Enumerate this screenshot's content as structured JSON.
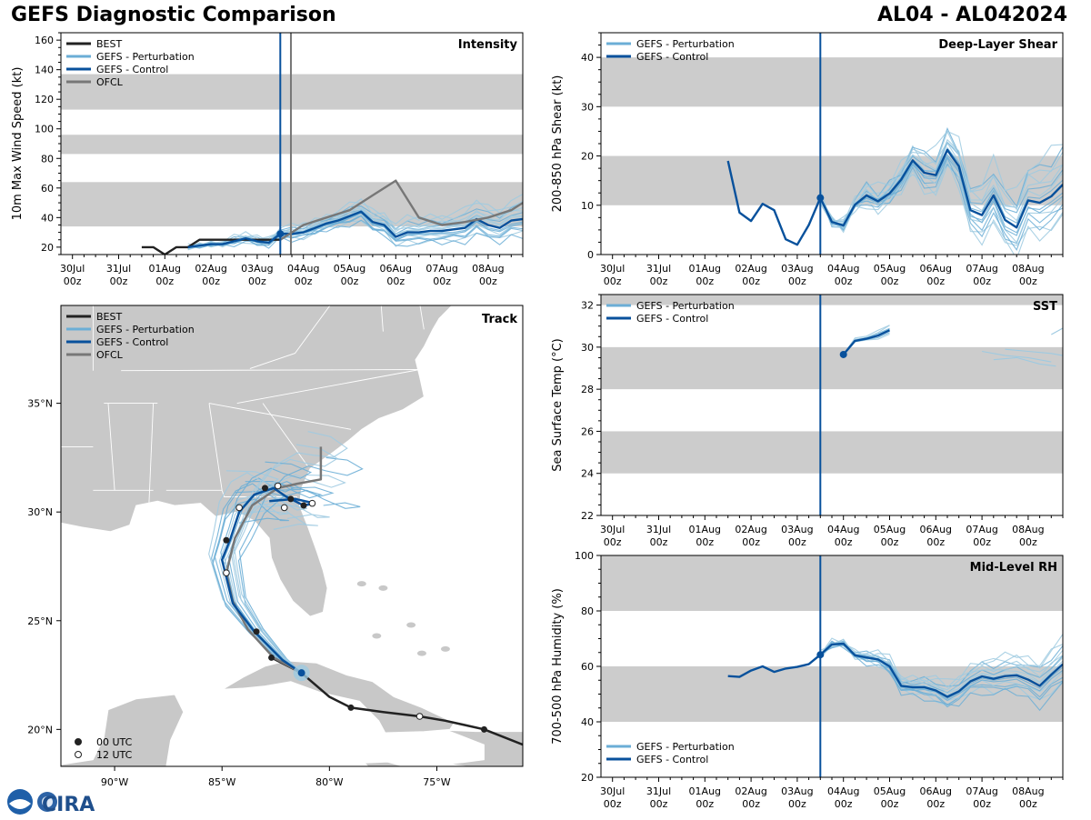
{
  "header": {
    "left_title": "GEFS Diagnostic Comparison",
    "right_title": "AL04 - AL042024"
  },
  "logo": {
    "text": "CIRA"
  },
  "colors": {
    "best": "#222222",
    "perturbation": "#6baed6",
    "perturbation_light": "#9ecae1",
    "control": "#08519c",
    "ofcl": "#777777",
    "band": "#cccccc",
    "land": "#c8c8c8"
  },
  "time_axis": {
    "tick_labels": [
      "30Jul\n00z",
      "31Jul\n00z",
      "01Aug\n00z",
      "02Aug\n00z",
      "03Aug\n00z",
      "04Aug\n00z",
      "05Aug\n00z",
      "06Aug\n00z",
      "07Aug\n00z",
      "08Aug\n00z"
    ],
    "tick_days": [
      0,
      1,
      2,
      3,
      4,
      5,
      6,
      7,
      8,
      9
    ],
    "xlim_days": [
      -0.25,
      9.75
    ],
    "init_day": 4.5,
    "ofcl_line_day": 4.73
  },
  "chart_data": [
    {
      "id": "intensity",
      "type": "line",
      "title": "Intensity",
      "ylabel": "10m Max Wind Speed (kt)",
      "ylim": [
        15,
        165
      ],
      "yticks": [
        20,
        40,
        60,
        80,
        100,
        120,
        140,
        160
      ],
      "bands": [
        [
          34,
          64
        ],
        [
          83,
          96
        ],
        [
          113,
          137
        ]
      ],
      "legend": [
        "BEST",
        "GEFS - Perturbation",
        "GEFS - Control",
        "OFCL"
      ],
      "series": [
        {
          "name": "BEST",
          "x": [
            1.5,
            1.75,
            2.0,
            2.25,
            2.5,
            2.75,
            3.0,
            3.25,
            3.5,
            3.75,
            4.0,
            4.25,
            4.5
          ],
          "y": [
            20,
            20,
            15,
            20,
            20,
            25,
            25,
            25,
            25,
            25,
            25,
            25,
            25
          ]
        },
        {
          "name": "GEFS - Control",
          "x": [
            2.5,
            2.75,
            3.0,
            3.25,
            3.5,
            3.75,
            4.0,
            4.25,
            4.5,
            4.75,
            5.0,
            5.25,
            5.5,
            5.75,
            6.0,
            6.25,
            6.5,
            6.75,
            7.0,
            7.25,
            7.5,
            7.75,
            8.0,
            8.25,
            8.5,
            8.75,
            9.0,
            9.25,
            9.5,
            9.75
          ],
          "y": [
            20,
            21,
            22,
            22,
            24,
            26,
            24,
            23,
            29,
            29,
            30,
            33,
            36,
            38,
            41,
            44,
            37,
            35,
            27,
            30,
            30,
            31,
            31,
            32,
            33,
            39,
            35,
            33,
            38,
            39
          ]
        },
        {
          "name": "OFCL",
          "x": [
            4.5,
            5.0,
            5.5,
            6.0,
            6.5,
            7.0,
            7.5,
            8.0,
            8.5,
            9.0,
            9.5,
            9.75
          ],
          "y": [
            25,
            35,
            40,
            45,
            55,
            65,
            40,
            35,
            37,
            40,
            45,
            50
          ]
        }
      ],
      "perturbation_spread": {
        "base": "GEFS - Control",
        "offsets": [
          -9,
          -6,
          -4,
          -2,
          2,
          4,
          6,
          9,
          12,
          -11,
          7,
          -7,
          14,
          -3,
          3
        ]
      }
    },
    {
      "id": "shear",
      "type": "line",
      "title": "Deep-Layer Shear",
      "ylabel": "200-850 hPa Shear (kt)",
      "ylim": [
        0,
        45
      ],
      "yticks": [
        0,
        10,
        20,
        30,
        40
      ],
      "bands": [
        [
          10,
          20
        ],
        [
          30,
          40
        ]
      ],
      "legend": [
        "GEFS - Perturbation",
        "GEFS - Control"
      ],
      "series": [
        {
          "name": "GEFS - Control",
          "x": [
            2.5,
            2.75,
            3.0,
            3.25,
            3.5,
            3.75,
            4.0,
            4.25,
            4.5,
            4.75,
            5.0,
            5.25,
            5.5,
            5.75,
            6.0,
            6.25,
            6.5,
            6.75,
            7.0,
            7.25,
            7.5,
            7.75,
            8.0,
            8.25,
            8.5,
            8.75,
            9.0,
            9.25,
            9.5,
            9.75
          ],
          "y": [
            19,
            8.5,
            6.8,
            10.3,
            9,
            3.1,
            2,
            6,
            11.5,
            6.6,
            5.9,
            10.1,
            12,
            10.8,
            12.4,
            15.2,
            19.1,
            16.6,
            16.1,
            21.2,
            17.9,
            9,
            8,
            12,
            7,
            5.5,
            11,
            10.5,
            11.8,
            14.2
          ]
        }
      ],
      "perturbation_spread": {
        "base": "GEFS - Control",
        "start_index": 8,
        "offsets": [
          -6,
          -4,
          -3,
          -1.5,
          2,
          3,
          5,
          7,
          9,
          -5,
          4,
          -2,
          6,
          1,
          -7
        ]
      }
    },
    {
      "id": "sst",
      "type": "line",
      "title": "SST",
      "ylabel": "Sea Surface Temp (°C)",
      "ylim": [
        22,
        32.5
      ],
      "yticks": [
        22,
        24,
        26,
        28,
        30,
        32
      ],
      "bands": [
        [
          24,
          26
        ],
        [
          28,
          30
        ],
        [
          32,
          34
        ]
      ],
      "legend": [
        "GEFS - Perturbation",
        "GEFS - Control"
      ],
      "series": [
        {
          "name": "GEFS - Control",
          "x": [
            5.0,
            5.25,
            5.5,
            5.75,
            6.0
          ],
          "y": [
            29.65,
            30.3,
            30.4,
            30.55,
            30.8
          ]
        }
      ],
      "perturbation_spread": {
        "base": "GEFS - Control",
        "offsets": [
          -0.2,
          0.1,
          0.2,
          -0.1,
          0.3,
          0.05
        ]
      },
      "perturbation_extra": [
        {
          "x": [
            8.0,
            8.5,
            9.0,
            9.5
          ],
          "y": [
            29.8,
            29.6,
            29.5,
            29.3
          ]
        },
        {
          "x": [
            8.25,
            8.75,
            9.25,
            9.6
          ],
          "y": [
            29.4,
            29.5,
            29.2,
            29.1
          ]
        },
        {
          "x": [
            8.5,
            9.0,
            9.5,
            9.75
          ],
          "y": [
            29.9,
            29.8,
            29.7,
            29.6
          ]
        },
        {
          "x": [
            9.5,
            9.75
          ],
          "y": [
            30.6,
            30.9
          ]
        }
      ]
    },
    {
      "id": "rh",
      "type": "line",
      "title": "Mid-Level RH",
      "ylabel": "700-500 hPa Humidity (%)",
      "ylim": [
        20,
        100
      ],
      "yticks": [
        20,
        40,
        60,
        80,
        100
      ],
      "bands": [
        [
          40,
          60
        ],
        [
          80,
          100
        ]
      ],
      "legend": [
        "GEFS - Perturbation",
        "GEFS - Control"
      ],
      "series": [
        {
          "name": "GEFS - Control",
          "x": [
            2.5,
            2.75,
            3.0,
            3.25,
            3.5,
            3.75,
            4.0,
            4.25,
            4.5,
            4.75,
            5.0,
            5.25,
            5.5,
            5.75,
            6.0,
            6.25,
            6.5,
            6.75,
            7.0,
            7.25,
            7.5,
            7.75,
            8.0,
            8.25,
            8.5,
            8.75,
            9.0,
            9.25,
            9.5,
            9.75
          ],
          "y": [
            56.5,
            56.2,
            58.5,
            60,
            58,
            59.2,
            59.8,
            60.8,
            64.2,
            67.9,
            68.2,
            64,
            63.2,
            62.5,
            60,
            53,
            52.5,
            52.5,
            51.3,
            49,
            51,
            54.6,
            56.4,
            55.5,
            56.5,
            56.8,
            55.2,
            53,
            57,
            60.8
          ]
        }
      ],
      "perturbation_spread": {
        "base": "GEFS - Control",
        "start_index": 8,
        "offsets": [
          -6,
          -4,
          -3,
          -2,
          2,
          3,
          4,
          6,
          8,
          -8,
          5,
          -5,
          1,
          -1,
          9
        ]
      }
    },
    {
      "id": "track",
      "type": "line",
      "title": "Track",
      "xlim_lon": [
        -92.5,
        -71.0
      ],
      "ylim_lat": [
        18.3,
        39.5
      ],
      "lon_ticks": [
        -90,
        -85,
        -80,
        -75
      ],
      "lon_tick_labels": [
        "90°W",
        "85°W",
        "80°W",
        "75°W"
      ],
      "lat_ticks": [
        20,
        25,
        30,
        35
      ],
      "lat_tick_labels": [
        "20°N",
        "25°N",
        "30°N",
        "35°N"
      ],
      "legend": [
        "BEST",
        "GEFS - Perturbation",
        "GEFS - Control",
        "OFCL"
      ],
      "marker_legend": [
        "00 UTC",
        "12 UTC"
      ],
      "series": [
        {
          "name": "BEST",
          "lon": [
            -71.0,
            -72.8,
            -74.6,
            -75.8,
            -77.5,
            -79.0,
            -80.0,
            -81.3,
            -82.7
          ],
          "lat": [
            19.3,
            20.0,
            20.4,
            20.6,
            20.8,
            21.0,
            21.5,
            22.6,
            23.3
          ]
        },
        {
          "name": "GEFS - Control",
          "lon": [
            -81.3,
            -82.2,
            -83.5,
            -84.5,
            -85.0,
            -84.6,
            -84.2,
            -83.5,
            -82.6,
            -82.0,
            -81.2,
            -80.7,
            -81.6,
            -82.8
          ],
          "lat": [
            22.6,
            23.2,
            24.5,
            25.8,
            27.8,
            28.8,
            30.0,
            30.8,
            31.1,
            30.7,
            30.3,
            30.4,
            30.6,
            30.5
          ]
        },
        {
          "name": "OFCL",
          "lon": [
            -81.3,
            -82.6,
            -83.8,
            -84.5,
            -84.8,
            -84.4,
            -83.6,
            -82.4,
            -81.5,
            -80.4,
            -80.4,
            -80.4,
            -80.4
          ],
          "lat": [
            22.6,
            23.3,
            24.6,
            25.9,
            27.2,
            28.8,
            30.3,
            31.1,
            31.3,
            31.5,
            31.8,
            32.5,
            33.0
          ]
        }
      ],
      "markers_00utc": [
        [
          -72.8,
          20.0
        ],
        [
          -79.0,
          21.0
        ],
        [
          -82.7,
          23.3
        ],
        [
          -83.4,
          24.5
        ],
        [
          -84.8,
          28.7
        ],
        [
          -83.0,
          31.1
        ],
        [
          -81.8,
          30.6
        ],
        [
          -81.2,
          30.3
        ]
      ],
      "markers_12utc": [
        [
          -75.8,
          20.6
        ],
        [
          -84.8,
          27.2
        ],
        [
          -84.2,
          30.2
        ],
        [
          -82.4,
          31.2
        ],
        [
          -82.1,
          30.2
        ],
        [
          -80.8,
          30.4
        ]
      ],
      "storm_lon": -81.3,
      "storm_lat": 22.6
    }
  ]
}
